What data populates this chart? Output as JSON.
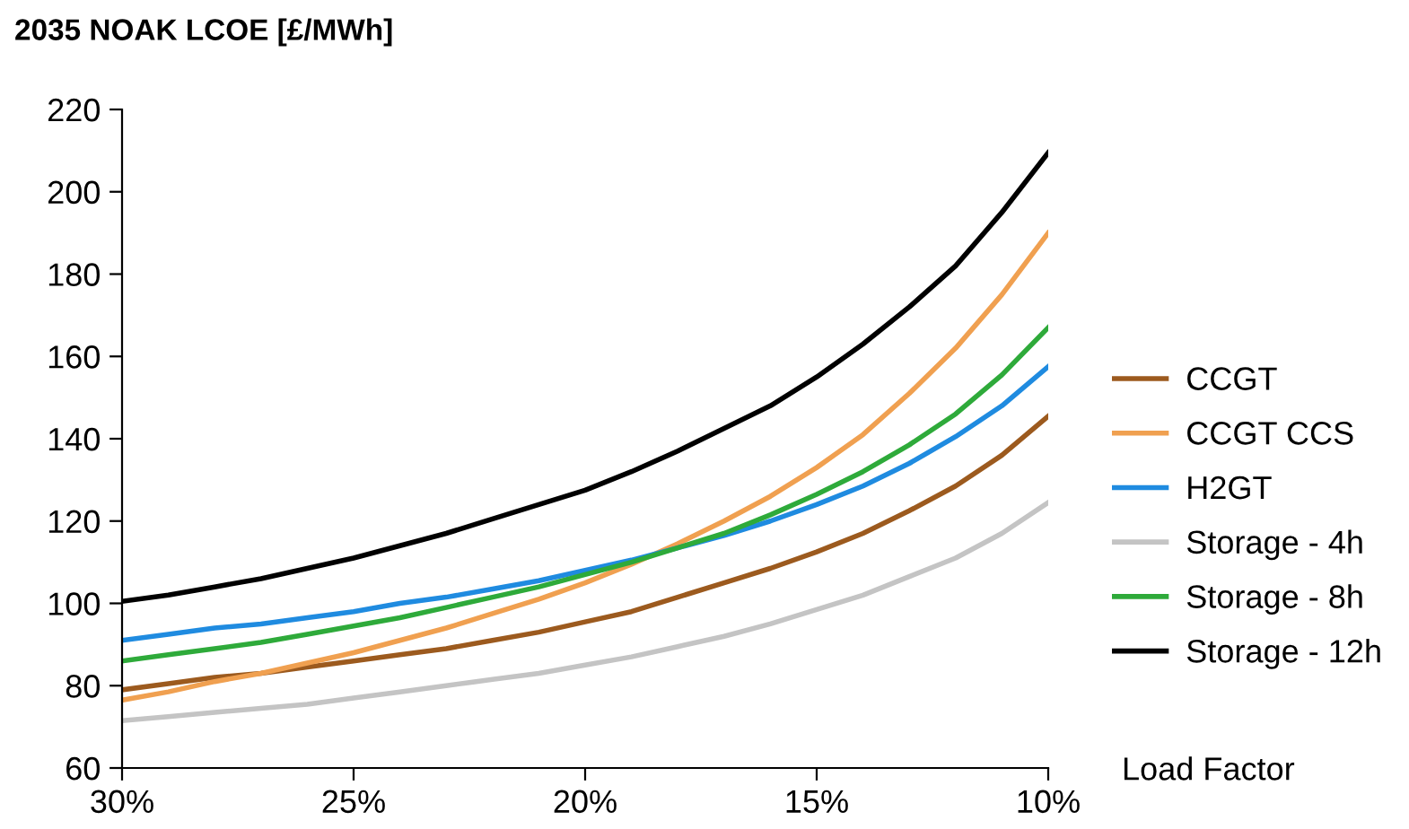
{
  "chart_data": {
    "type": "line",
    "title": "2035 NOAK LCOE [£/MWh]",
    "xlabel": "Load Factor",
    "x": [
      30,
      29,
      28,
      27,
      26,
      25,
      24,
      23,
      22,
      21,
      20,
      19,
      18,
      17,
      16,
      15,
      14,
      13,
      12,
      11,
      10
    ],
    "xlim": [
      30,
      10
    ],
    "xticks": [
      {
        "value": 30,
        "label": "30%"
      },
      {
        "value": 25,
        "label": "25%"
      },
      {
        "value": 20,
        "label": "20%"
      },
      {
        "value": 15,
        "label": "15%"
      },
      {
        "value": 10,
        "label": "10%"
      }
    ],
    "ylim": [
      60,
      220
    ],
    "yticks": [
      60,
      80,
      100,
      120,
      140,
      160,
      180,
      200,
      220
    ],
    "grid": false,
    "legend": "right",
    "marker": "none",
    "line_style": "solid",
    "series": [
      {
        "name": "CCGT",
        "color": "#9c5a1e",
        "values": [
          79,
          80.5,
          82,
          83,
          84.5,
          86,
          87.5,
          89,
          91,
          93,
          95.5,
          98,
          101.5,
          105,
          108.5,
          112.5,
          117,
          122.5,
          128.5,
          136,
          145.5
        ]
      },
      {
        "name": "CCGT CCS",
        "color": "#f0a050",
        "values": [
          76.5,
          78.5,
          81,
          83,
          85.5,
          88,
          91,
          94,
          97.5,
          101,
          105,
          109.5,
          114.5,
          120,
          126,
          133,
          141,
          151,
          162,
          175,
          190
        ]
      },
      {
        "name": "H2GT",
        "color": "#1f8be0",
        "values": [
          91,
          92.5,
          94,
          95,
          96.5,
          98,
          100,
          101.5,
          103.5,
          105.5,
          108,
          110.5,
          113.5,
          116.5,
          120,
          124,
          128.5,
          134,
          140.5,
          148,
          157.5
        ]
      },
      {
        "name": "Storage - 4h",
        "color": "#c4c4c4",
        "values": [
          71.5,
          72.5,
          73.5,
          74.5,
          75.5,
          77,
          78.5,
          80,
          81.5,
          83,
          85,
          87,
          89.5,
          92,
          95,
          98.5,
          102,
          106.5,
          111,
          117,
          124.5
        ]
      },
      {
        "name": "Storage - 8h",
        "color": "#2eaa3a",
        "values": [
          86,
          87.5,
          89,
          90.5,
          92.5,
          94.5,
          96.5,
          99,
          101.5,
          104,
          107,
          110,
          113.5,
          117,
          121.5,
          126.5,
          132,
          138.5,
          146,
          155.5,
          167
        ]
      },
      {
        "name": "Storage - 12h",
        "color": "#000000",
        "values": [
          100.5,
          102,
          104,
          106,
          108.5,
          111,
          114,
          117,
          120.5,
          124,
          127.5,
          132,
          137,
          142.5,
          148,
          155,
          163,
          172,
          182,
          195,
          209.5
        ]
      }
    ]
  }
}
